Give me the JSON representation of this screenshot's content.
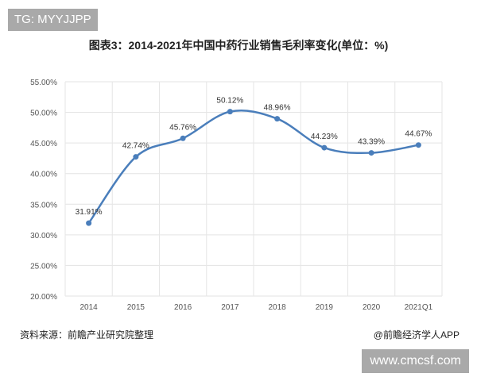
{
  "watermark_top": "TG: MYYJJPP",
  "watermark_bottom": "www.cmcsf.com",
  "source": "资料来源：前瞻产业研究院整理",
  "credit": "@前瞻经济学人APP",
  "chart_data": {
    "type": "line",
    "title": "图表3：2014-2021年中国中药行业销售毛利率变化(单位：%)",
    "categories": [
      "2014",
      "2015",
      "2016",
      "2017",
      "2018",
      "2019",
      "2020",
      "2021Q1"
    ],
    "series": [
      {
        "values": [
          31.91,
          42.74,
          45.76,
          50.12,
          48.96,
          44.23,
          43.39,
          44.67
        ]
      }
    ],
    "data_labels": [
      "31.91%",
      "42.74%",
      "45.76%",
      "50.12%",
      "48.96%",
      "44.23%",
      "43.39%",
      "44.67%"
    ],
    "y_ticks": [
      "20.00%",
      "25.00%",
      "30.00%",
      "35.00%",
      "40.00%",
      "45.00%",
      "50.00%",
      "55.00%"
    ],
    "ylim": [
      20,
      55
    ],
    "smooth": true,
    "grid": true,
    "line_color": "#4a7ebb"
  }
}
